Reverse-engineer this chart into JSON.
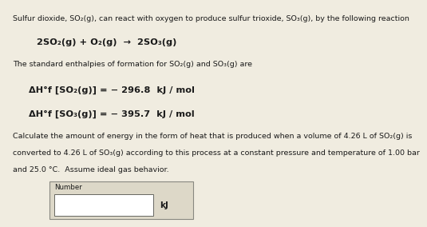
{
  "bg_color": "#f0ece0",
  "white": "#ffffff",
  "text_color": "#1a1a1a",
  "fs_small": 6.8,
  "fs_eq": 8.2,
  "fs_dH": 8.2,
  "line1": "Sulfur dioxide, SO₂(g), can react with oxygen to produce sulfur trioxide, SO₃(g), by the following reaction",
  "reaction": "2SO₂(g) + O₂(g)  →  2SO₃(g)",
  "enthalpy_intro": "The standard enthalpies of formation for SO₂(g) and SO₃(g) are",
  "dH1": "ΔH°f [SO₂(g)] = −296.8  kJ / mol",
  "dH2": "ΔH°f [SO₃(g)] = −395.7  kJ / mol",
  "calc1": "Calculate the amount of energy in the form of heat that is produced when a volume of 4.26 L of SO₂(g) is",
  "calc2": "converted to 4.26 L of SO₃(g) according to this process at a constant pressure and temperature of 1.00 bar",
  "calc3": "and 25.0 °C.  Assume ideal gas behavior.",
  "box_label": "Number",
  "unit": "kJ",
  "outer_box_color": "#ddd8c8",
  "inner_box_color": "#ffffff",
  "border_color": "#888880"
}
